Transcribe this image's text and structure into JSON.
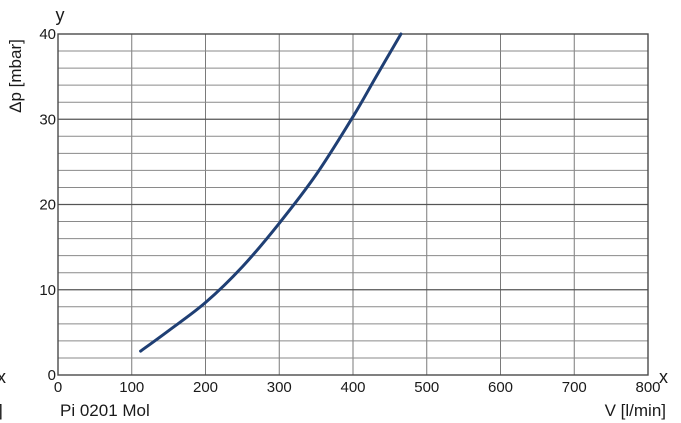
{
  "chart_data": {
    "type": "line",
    "title": "",
    "xlabel": "V [l/min]",
    "ylabel": "Δp [mbar]",
    "x_axis_letter": "x",
    "y_axis_letter": "y",
    "xlim": [
      0,
      800
    ],
    "ylim": [
      0,
      40
    ],
    "grid": true,
    "x_ticks": [
      "0",
      "100",
      "200",
      "300",
      "400",
      "500",
      "600",
      "700",
      "800"
    ],
    "y_ticks": [
      "0",
      "10",
      "20",
      "30",
      "40"
    ],
    "annotation": "Pi 0201 Mol",
    "series": [
      {
        "color": "#1f3f74",
        "x": [
          112,
          150,
          200,
          250,
          300,
          350,
          400,
          430,
          465
        ],
        "y": [
          2.8,
          5.2,
          8.5,
          12.7,
          17.8,
          23.5,
          30.3,
          34.8,
          40
        ]
      }
    ]
  },
  "edge_marks": {
    "left_letter": "x",
    "left_bracket": "]"
  }
}
